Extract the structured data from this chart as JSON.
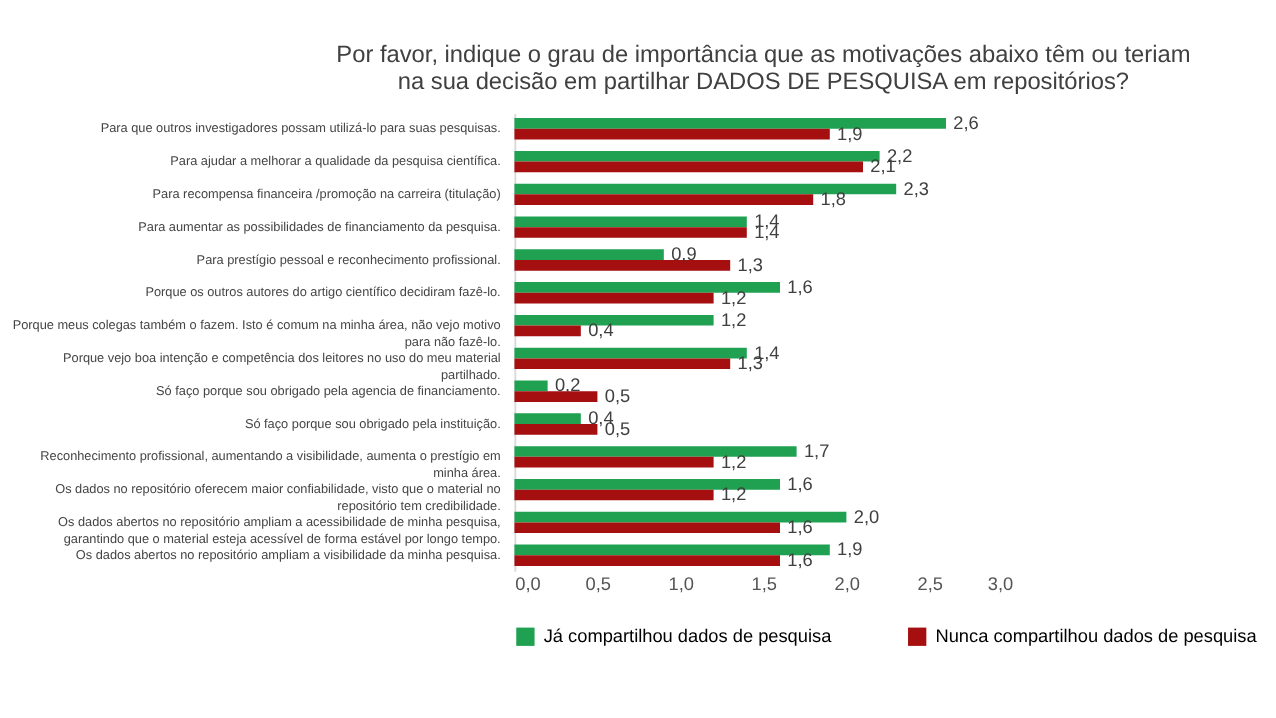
{
  "chart_data": {
    "type": "bar",
    "orientation": "horizontal",
    "title": "Por favor, indique o grau de importância que as motivações abaixo têm ou teriam\nna sua decisão em partilhar DADOS DE PESQUISA em repositórios?",
    "categories": [
      "Para que outros investigadores possam utilizá-lo para suas pesquisas.",
      "Para ajudar a melhorar a qualidade da pesquisa científica.",
      "Para recompensa financeira /promoção na carreira (titulação)",
      "Para aumentar as possibilidades de financiamento da pesquisa.",
      "Para prestígio pessoal e reconhecimento profissional.",
      "Porque os outros autores do artigo científico decidiram fazê-lo.",
      "Porque meus colegas também o fazem. Isto é comum na minha área, não vejo motivo para não fazê-lo.",
      "Porque vejo boa intenção e competência dos leitores no uso do meu material partilhado.",
      "Só faço porque sou obrigado pela agencia de financiamento.",
      "Só faço porque sou obrigado pela instituição.",
      "Reconhecimento profissional, aumentando a visibilidade, aumenta o prestígio em minha área.",
      "Os dados no repositório oferecem maior confiabilidade, visto que o material no repositório tem credibilidade.",
      "Os dados abertos no repositório ampliam a acessibilidade de minha pesquisa, garantindo que o material esteja acessível de forma estável por longo tempo.",
      "Os dados abertos no repositório ampliam a visibilidade da minha pesquisa."
    ],
    "series": [
      {
        "name": "Já compartilhou dados de pesquisa",
        "color": "#1fa151",
        "values": [
          2.6,
          2.2,
          2.3,
          1.4,
          0.9,
          1.6,
          1.2,
          1.4,
          0.2,
          0.4,
          1.7,
          1.6,
          2.0,
          1.9
        ],
        "value_labels": [
          "2,6",
          "2,2",
          "2,3",
          "1,4",
          "0,9",
          "1,6",
          "1,2",
          "1,4",
          "0,2",
          "0,4",
          "1,7",
          "1,6",
          "2,0",
          "1,9"
        ]
      },
      {
        "name": "Nunca compartilhou dados de pesquisa",
        "color": "#a50f0f",
        "values": [
          1.9,
          2.1,
          1.8,
          1.4,
          1.3,
          1.2,
          0.4,
          1.3,
          0.5,
          0.5,
          1.2,
          1.2,
          1.6,
          1.6
        ],
        "value_labels": [
          "1,9",
          "2,1",
          "1,8",
          "1,4",
          "1,3",
          "1,2",
          "0,4",
          "1,3",
          "0,5",
          "0,5",
          "1,2",
          "1,2",
          "1,6",
          "1,6"
        ]
      }
    ],
    "xlim": [
      0,
      3
    ],
    "xticks": [
      {
        "value": 0,
        "label": "0,0"
      },
      {
        "value": 0.5,
        "label": "0,5"
      },
      {
        "value": 1,
        "label": "1,0"
      },
      {
        "value": 1.5,
        "label": "1,5"
      },
      {
        "value": 2,
        "label": "2,0"
      },
      {
        "value": 2.5,
        "label": "2,5"
      },
      {
        "value": 3,
        "label": "3,0"
      }
    ],
    "grid": false,
    "legend": "bottom"
  }
}
